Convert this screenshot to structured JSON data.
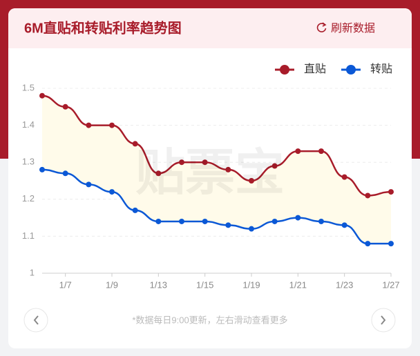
{
  "chart_data": {
    "type": "line",
    "title": "6M直贴和转贴利率趋势图",
    "refresh_button": "刷新数据",
    "watermark": "贴票宝",
    "note": "*数据每日9:00更新，左右滑动查看更多",
    "categories": [
      null,
      "1/7",
      null,
      "1/9",
      null,
      "1/13",
      null,
      "1/15",
      null,
      "1/19",
      null,
      "1/21",
      null,
      "1/23",
      null,
      "1/27"
    ],
    "series": [
      {
        "name": "直贴",
        "color": "#a81c2a",
        "values": [
          1.48,
          1.45,
          1.4,
          1.4,
          1.35,
          1.27,
          1.3,
          1.3,
          1.28,
          1.25,
          1.29,
          1.33,
          1.33,
          1.26,
          1.21,
          1.22
        ]
      },
      {
        "name": "转贴",
        "color": "#0b58d6",
        "values": [
          1.28,
          1.27,
          1.24,
          1.22,
          1.17,
          1.14,
          1.14,
          1.14,
          1.13,
          1.12,
          1.14,
          1.15,
          1.14,
          1.13,
          1.08,
          1.08
        ]
      }
    ],
    "ylim": [
      1,
      1.5
    ],
    "yticks": [
      1,
      1.1,
      1.2,
      1.3,
      1.4,
      1.5
    ],
    "grid": true,
    "legend": "top-right",
    "band_fill": "#fffbea"
  }
}
